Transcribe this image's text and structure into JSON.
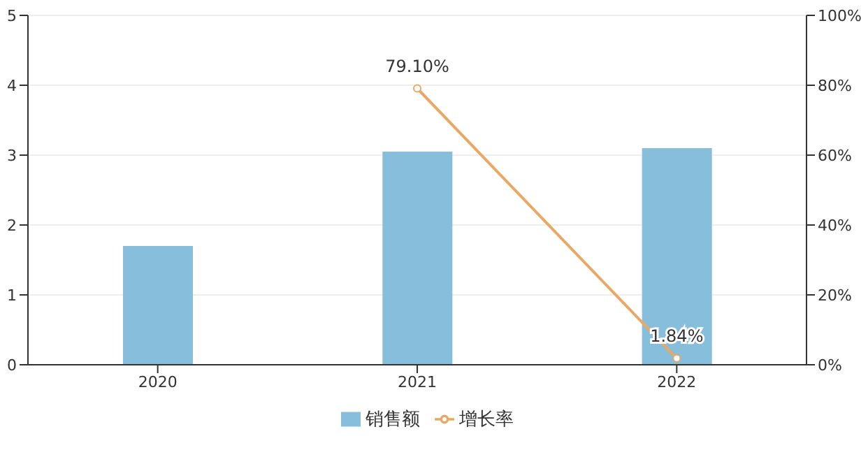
{
  "chart_data": {
    "type": "bar",
    "categories": [
      "2020",
      "2021",
      "2022"
    ],
    "series": [
      {
        "name": "销售额",
        "color": "#86bedb",
        "values": [
          1.7,
          3.05,
          3.1
        ]
      },
      {
        "name": "增长率",
        "type": "line",
        "axis": "y2",
        "color": "#e8a866",
        "values": [
          null,
          79.1,
          1.84
        ],
        "value_labels": [
          null,
          "79.10%",
          "1.84%"
        ]
      }
    ],
    "ylim": [
      0,
      5
    ],
    "yticks": [
      0,
      1,
      2,
      3,
      4,
      5
    ],
    "y2lim": [
      0,
      100
    ],
    "y2ticks": [
      {
        "value": 0,
        "label": "0%"
      },
      {
        "value": 20,
        "label": "20%"
      },
      {
        "value": 40,
        "label": "40%"
      },
      {
        "value": 60,
        "label": "60%"
      },
      {
        "value": 80,
        "label": "80%"
      },
      {
        "value": 100,
        "label": "100%"
      }
    ],
    "grid": "y",
    "legend": "bottom",
    "marker": "circle"
  }
}
